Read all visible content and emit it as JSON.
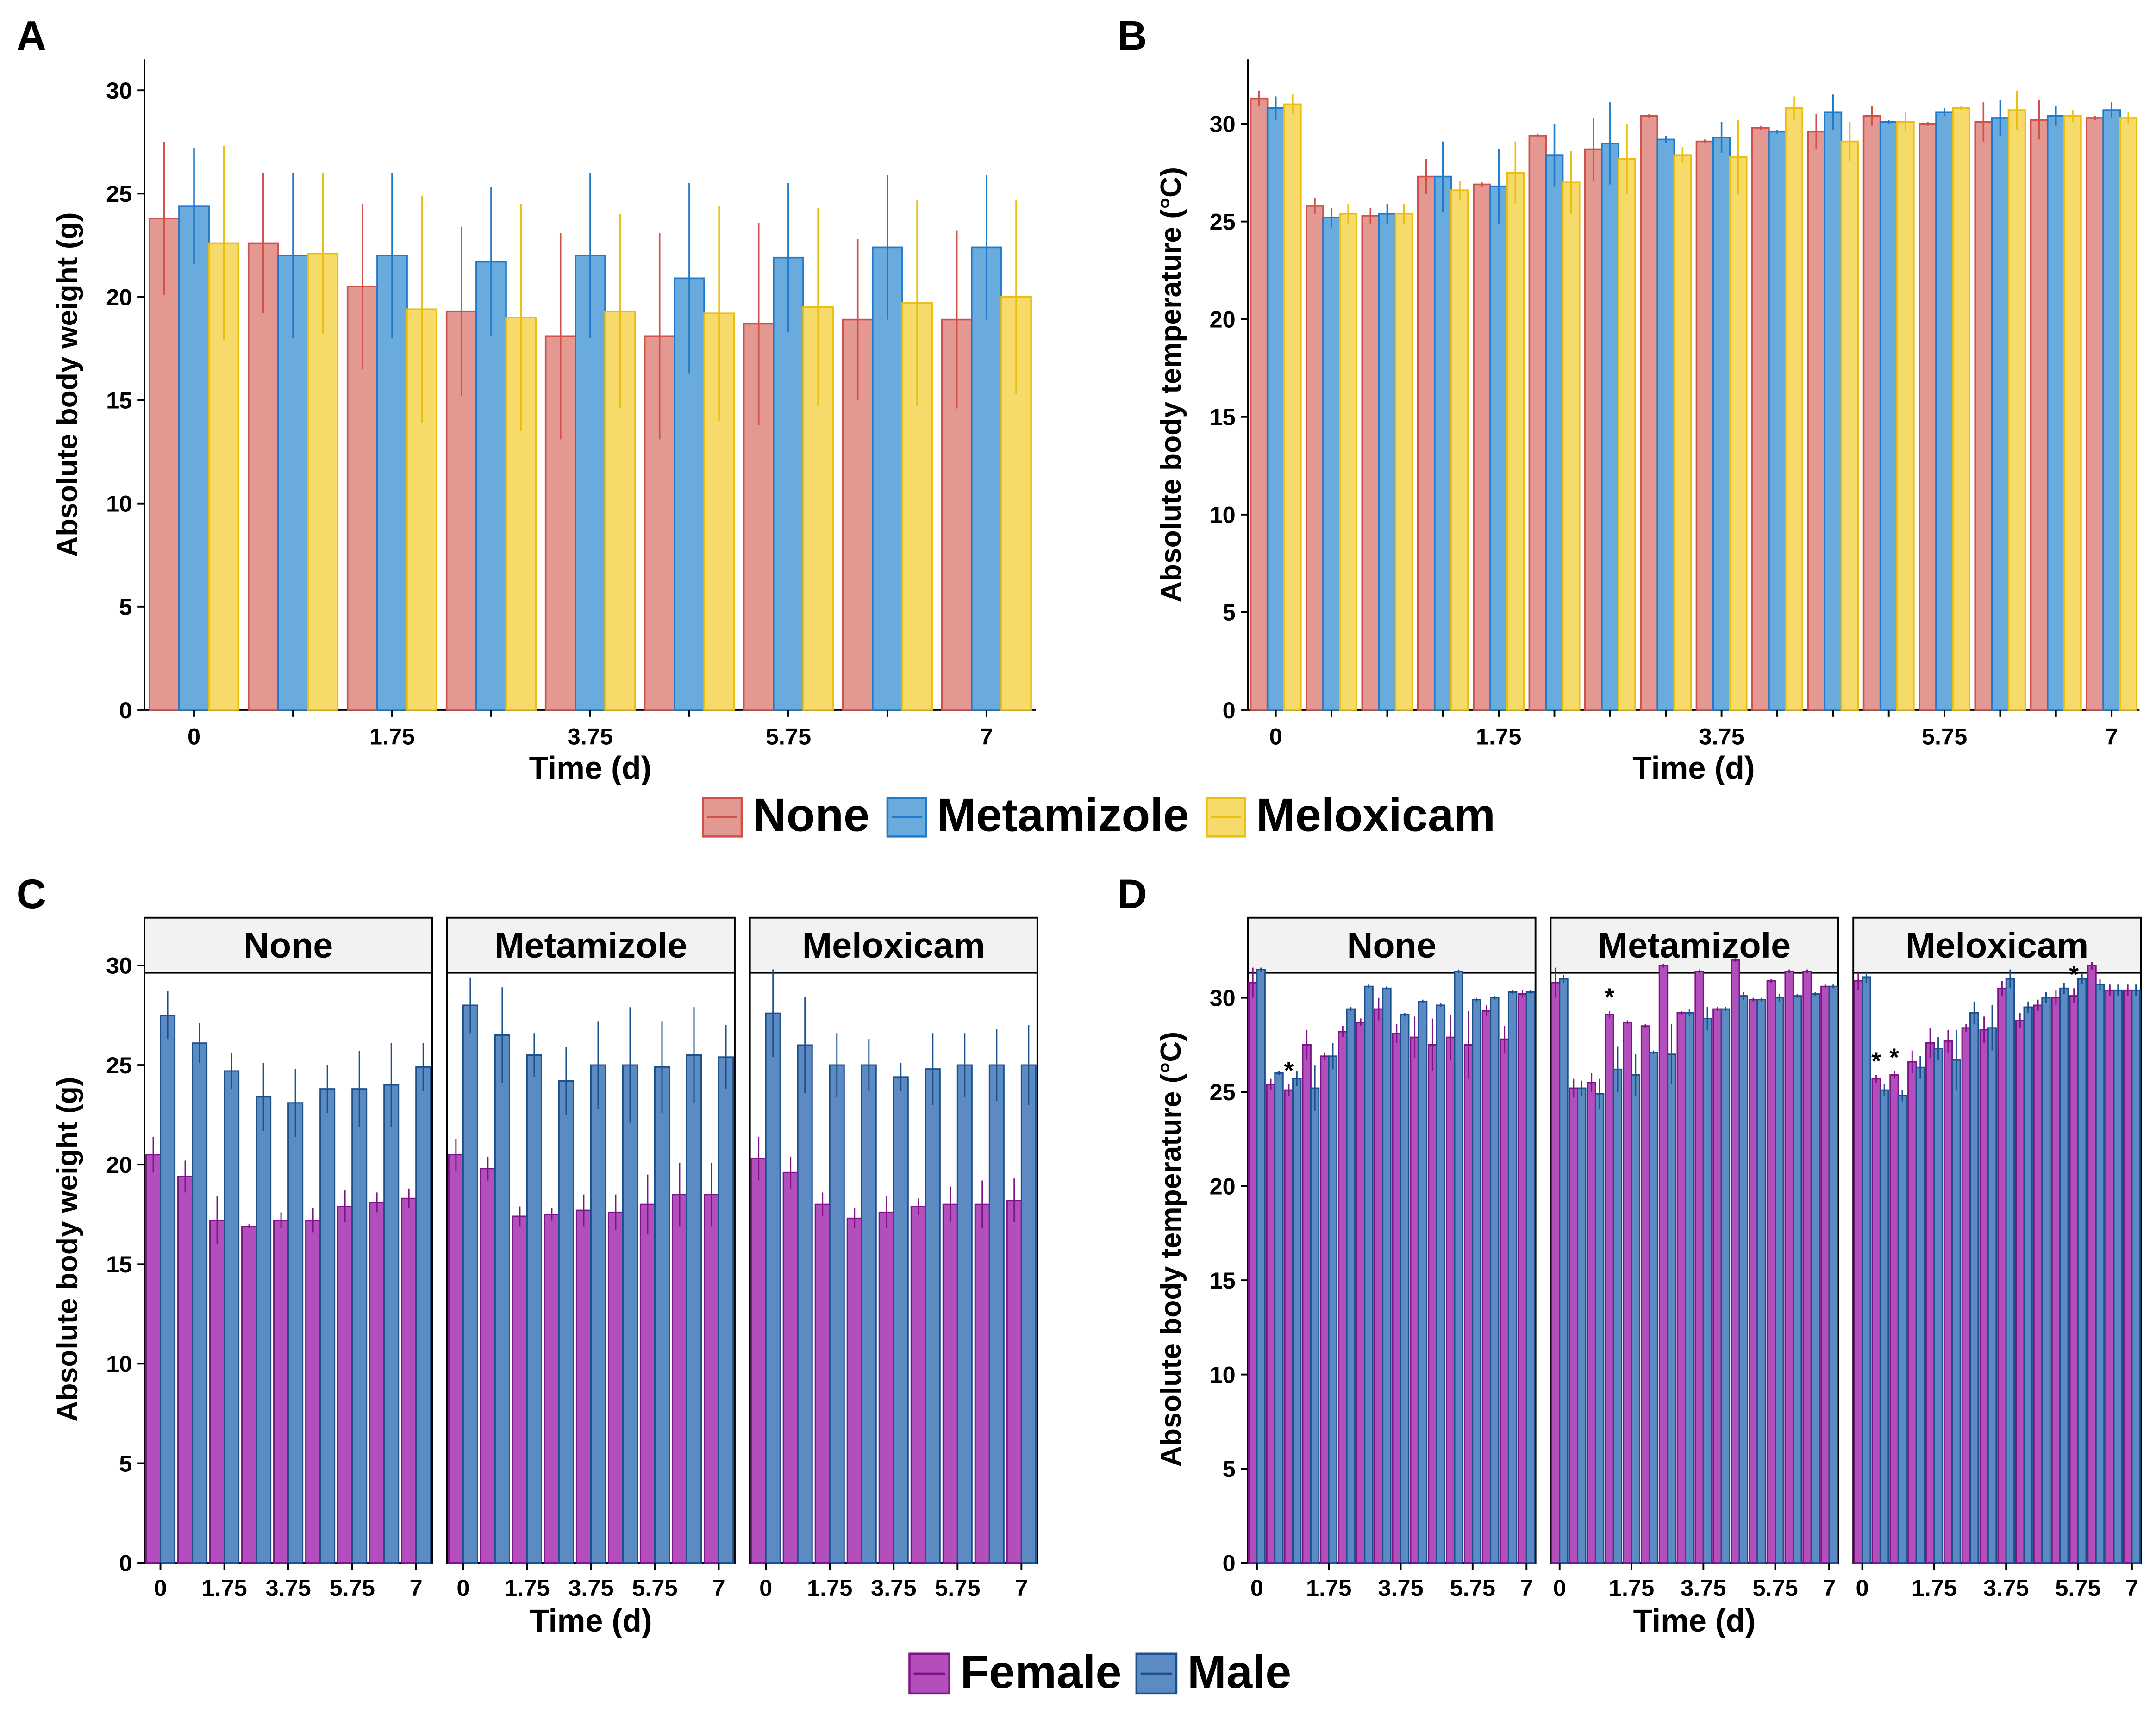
{
  "figure": {
    "legend_treatment": [
      {
        "label": "None",
        "fill": "#E49892",
        "stroke": "#D0504A"
      },
      {
        "label": "Metamizole",
        "fill": "#69ABDC",
        "stroke": "#1F7ACB"
      },
      {
        "label": "Meloxicam",
        "fill": "#F6DB6A",
        "stroke": "#EBBE12"
      }
    ],
    "legend_sex": [
      {
        "label": "Female",
        "fill": "#B24FBD",
        "stroke": "#7D1386"
      },
      {
        "label": "Male",
        "fill": "#5B8BC2",
        "stroke": "#1B4F8E"
      }
    ]
  },
  "chart_data": [
    {
      "panel": "A",
      "type": "bar",
      "xlabel": "Time (d)",
      "ylabel": "Absolute body weight (g)",
      "ylim": [
        0,
        31.5
      ],
      "yticks": [
        0,
        5,
        10,
        15,
        20,
        25,
        30
      ],
      "categories": [
        "0",
        "",
        "1.75",
        "",
        "3.75",
        "",
        "5.75",
        "",
        "7"
      ],
      "series": [
        {
          "name": "None",
          "values": [
            23.8,
            22.6,
            20.5,
            19.3,
            18.1,
            18.1,
            18.7,
            18.9,
            18.9
          ],
          "errors": [
            3.7,
            3.4,
            4.0,
            4.1,
            5.0,
            5.0,
            4.9,
            3.9,
            4.3
          ]
        },
        {
          "name": "Metamizole",
          "values": [
            24.4,
            22.0,
            22.0,
            21.7,
            22.0,
            20.9,
            21.9,
            22.4,
            22.4
          ],
          "errors": [
            2.8,
            4.0,
            4.0,
            3.6,
            4.0,
            4.6,
            3.6,
            3.5,
            3.5
          ]
        },
        {
          "name": "Meloxicam",
          "values": [
            22.6,
            22.1,
            19.4,
            19.0,
            19.3,
            19.2,
            19.5,
            19.7,
            20.0
          ],
          "errors": [
            4.7,
            3.9,
            5.5,
            5.5,
            4.7,
            5.2,
            4.8,
            5.0,
            4.7
          ]
        }
      ]
    },
    {
      "panel": "B",
      "type": "bar",
      "xlabel": "Time (d)",
      "ylabel": "Absolute body temperature (°C)",
      "ylim": [
        0,
        33.3
      ],
      "yticks": [
        0,
        5,
        10,
        15,
        20,
        25,
        30
      ],
      "categories": [
        "0",
        "",
        "",
        "",
        "1.75",
        "",
        "",
        "",
        "3.75",
        "",
        "",
        "",
        "5.75",
        "",
        "",
        "7"
      ],
      "series": [
        {
          "name": "None",
          "values": [
            31.3,
            25.8,
            25.3,
            27.3,
            26.9,
            29.4,
            28.7,
            30.4,
            29.1,
            29.8,
            29.6,
            30.4,
            30.0,
            30.1,
            30.2,
            30.3
          ],
          "errors": [
            0.4,
            0.4,
            0.4,
            0.9,
            0.1,
            0.1,
            1.6,
            0.1,
            0.1,
            0.1,
            0.9,
            0.5,
            0.1,
            1.0,
            1.0,
            0.1
          ]
        },
        {
          "name": "Metamizole",
          "values": [
            30.8,
            25.2,
            25.4,
            27.3,
            26.8,
            28.4,
            29.0,
            29.2,
            29.3,
            29.6,
            30.6,
            30.1,
            30.6,
            30.3,
            30.4,
            30.7
          ],
          "errors": [
            0.6,
            0.5,
            0.5,
            1.8,
            1.9,
            1.6,
            2.1,
            0.2,
            0.8,
            0.1,
            0.9,
            0.1,
            0.2,
            0.9,
            0.5,
            0.4
          ]
        },
        {
          "name": "Meloxicam",
          "values": [
            31.0,
            25.4,
            25.4,
            26.6,
            27.5,
            27.0,
            28.2,
            28.4,
            28.3,
            30.8,
            29.1,
            30.1,
            30.8,
            30.7,
            30.4,
            30.3
          ],
          "errors": [
            0.5,
            0.5,
            0.5,
            0.5,
            1.6,
            1.6,
            1.8,
            0.4,
            1.9,
            0.6,
            1.0,
            0.5,
            0.1,
            1.0,
            0.3,
            0.3
          ]
        }
      ]
    },
    {
      "panel": "C",
      "type": "bar",
      "xlabel": "Time (d)",
      "ylabel": "Absolute body weight (g)",
      "ylim": [
        0,
        31.5
      ],
      "yticks": [
        0,
        5,
        10,
        15,
        20,
        25,
        30
      ],
      "xticks": [
        "0",
        "1.75",
        "3.75",
        "5.75",
        "7"
      ],
      "facets": [
        {
          "name": "None",
          "series": [
            {
              "name": "Female",
              "values": [
                20.5,
                19.4,
                17.2,
                16.9,
                17.2,
                17.2,
                17.9,
                18.1,
                18.3
              ],
              "errors": [
                0.9,
                0.8,
                1.2,
                0.1,
                0.4,
                0.6,
                0.8,
                0.5,
                0.5
              ]
            },
            {
              "name": "Male",
              "values": [
                27.5,
                26.1,
                24.7,
                23.4,
                23.1,
                23.8,
                23.8,
                24.0,
                24.9
              ],
              "errors": [
                1.2,
                1.0,
                0.9,
                1.7,
                1.7,
                1.2,
                1.9,
                2.1,
                1.2
              ]
            }
          ]
        },
        {
          "name": "Metamizole",
          "series": [
            {
              "name": "Female",
              "values": [
                20.5,
                19.8,
                17.4,
                17.5,
                17.7,
                17.6,
                18.0,
                18.5,
                18.5
              ],
              "errors": [
                0.8,
                0.6,
                0.5,
                0.3,
                0.8,
                0.9,
                1.5,
                1.6,
                1.6
              ]
            },
            {
              "name": "Male",
              "values": [
                28.0,
                26.5,
                25.5,
                24.2,
                25.0,
                25.0,
                24.9,
                25.5,
                25.4
              ],
              "errors": [
                1.4,
                2.4,
                1.1,
                1.7,
                2.2,
                2.9,
                2.3,
                2.4,
                1.6
              ]
            }
          ]
        },
        {
          "name": "Meloxicam",
          "series": [
            {
              "name": "Female",
              "values": [
                20.3,
                19.6,
                18.0,
                17.3,
                17.6,
                17.9,
                18.0,
                18.0,
                18.2
              ],
              "errors": [
                1.1,
                0.8,
                0.6,
                0.5,
                0.8,
                0.4,
                0.9,
                1.2,
                1.1
              ]
            },
            {
              "name": "Male",
              "values": [
                27.6,
                26.0,
                25.0,
                25.0,
                24.4,
                24.8,
                25.0,
                25.0,
                25.0
              ],
              "errors": [
                2.2,
                2.4,
                1.6,
                1.3,
                0.7,
                1.8,
                1.6,
                1.8,
                2.0
              ]
            }
          ]
        }
      ]
    },
    {
      "panel": "D",
      "type": "bar",
      "xlabel": "Time (d)",
      "ylabel": "Absolute body temperature (°C)",
      "ylim": [
        0,
        33.3
      ],
      "yticks": [
        0,
        5,
        10,
        15,
        20,
        25,
        30
      ],
      "xticks": [
        "0",
        "1.75",
        "3.75",
        "5.75",
        "7"
      ],
      "facets": [
        {
          "name": "None",
          "series": [
            {
              "name": "Female",
              "values": [
                30.8,
                25.4,
                25.1,
                27.5,
                26.9,
                28.2,
                28.7,
                29.4,
                28.1,
                27.9,
                27.5,
                27.9,
                27.5,
                29.3,
                27.8,
                30.2
              ],
              "errors": [
                0.8,
                0.3,
                0.3,
                0.8,
                0.2,
                0.3,
                0.2,
                0.6,
                0.5,
                1.1,
                1.4,
                1.2,
                1.8,
                0.3,
                0.7,
                0.2
              ],
              "stars": [
                0,
                0,
                1,
                0,
                0,
                0,
                0,
                0,
                0,
                0,
                0,
                0,
                0,
                0,
                0,
                0
              ]
            },
            {
              "name": "Male",
              "values": [
                31.5,
                26.0,
                25.7,
                25.2,
                26.9,
                29.4,
                30.6,
                30.5,
                29.1,
                29.8,
                29.6,
                31.4,
                29.9,
                30.0,
                30.3,
                30.3
              ],
              "errors": [
                0.1,
                0.1,
                0.4,
                1.2,
                0.7,
                0.1,
                0.1,
                0.1,
                0.1,
                0.1,
                0.1,
                0.1,
                0.1,
                0.1,
                0.1,
                0.1
              ],
              "stars": [
                0,
                0,
                0,
                0,
                0,
                0,
                0,
                0,
                0,
                0,
                0,
                0,
                0,
                0,
                0,
                0
              ]
            }
          ]
        },
        {
          "name": "Metamizole",
          "series": [
            {
              "name": "Female",
              "values": [
                30.8,
                25.2,
                25.5,
                29.1,
                28.7,
                28.5,
                31.7,
                29.2,
                31.4,
                29.4,
                32.0,
                29.9,
                30.9,
                31.4,
                31.4,
                30.6
              ],
              "errors": [
                0.8,
                0.5,
                0.5,
                0.2,
                0.1,
                0.1,
                0.1,
                0.1,
                0.1,
                0.1,
                0.1,
                0.1,
                0.1,
                0.1,
                0.1,
                0.1
              ],
              "stars": [
                0,
                0,
                0,
                1,
                0,
                0,
                0,
                0,
                0,
                0,
                0,
                0,
                0,
                0,
                0,
                0
              ]
            },
            {
              "name": "Male",
              "values": [
                31.0,
                25.2,
                24.9,
                26.2,
                25.9,
                27.1,
                27.0,
                29.2,
                28.9,
                29.4,
                30.1,
                29.9,
                30.0,
                30.1,
                30.2,
                30.6
              ],
              "errors": [
                0.2,
                0.4,
                0.8,
                1.2,
                1.1,
                0.1,
                1.6,
                0.2,
                0.6,
                0.1,
                0.2,
                0.1,
                0.2,
                0.1,
                0.1,
                0.1
              ],
              "stars": [
                0,
                0,
                0,
                0,
                0,
                0,
                0,
                0,
                0,
                0,
                0,
                0,
                0,
                0,
                0,
                0
              ]
            }
          ]
        },
        {
          "name": "Meloxicam",
          "series": [
            {
              "name": "Female",
              "values": [
                30.9,
                25.7,
                25.9,
                26.6,
                27.6,
                27.7,
                28.4,
                28.3,
                30.5,
                28.8,
                29.6,
                30.0,
                30.1,
                31.7,
                30.4,
                30.4
              ],
              "errors": [
                0.5,
                0.2,
                0.2,
                0.6,
                0.8,
                0.6,
                0.2,
                0.7,
                0.4,
                0.4,
                0.3,
                0.4,
                0.4,
                0.2,
                0.3,
                0.3
              ],
              "stars": [
                0,
                1,
                1,
                0,
                0,
                0,
                0,
                0,
                0,
                0,
                0,
                0,
                1,
                0,
                0,
                0
              ]
            },
            {
              "name": "Male",
              "values": [
                31.1,
                25.1,
                24.8,
                26.3,
                27.3,
                26.7,
                29.2,
                28.4,
                31.0,
                29.5,
                30.0,
                30.5,
                31.0,
                30.7,
                30.4,
                30.4
              ],
              "errors": [
                0.3,
                0.3,
                0.3,
                0.6,
                0.6,
                1.6,
                0.6,
                1.2,
                0.5,
                0.3,
                0.3,
                0.3,
                0.3,
                0.3,
                0.3,
                0.3
              ],
              "stars": [
                0,
                0,
                0,
                0,
                0,
                0,
                0,
                0,
                0,
                0,
                0,
                0,
                0,
                0,
                0,
                0
              ]
            }
          ]
        }
      ]
    }
  ]
}
